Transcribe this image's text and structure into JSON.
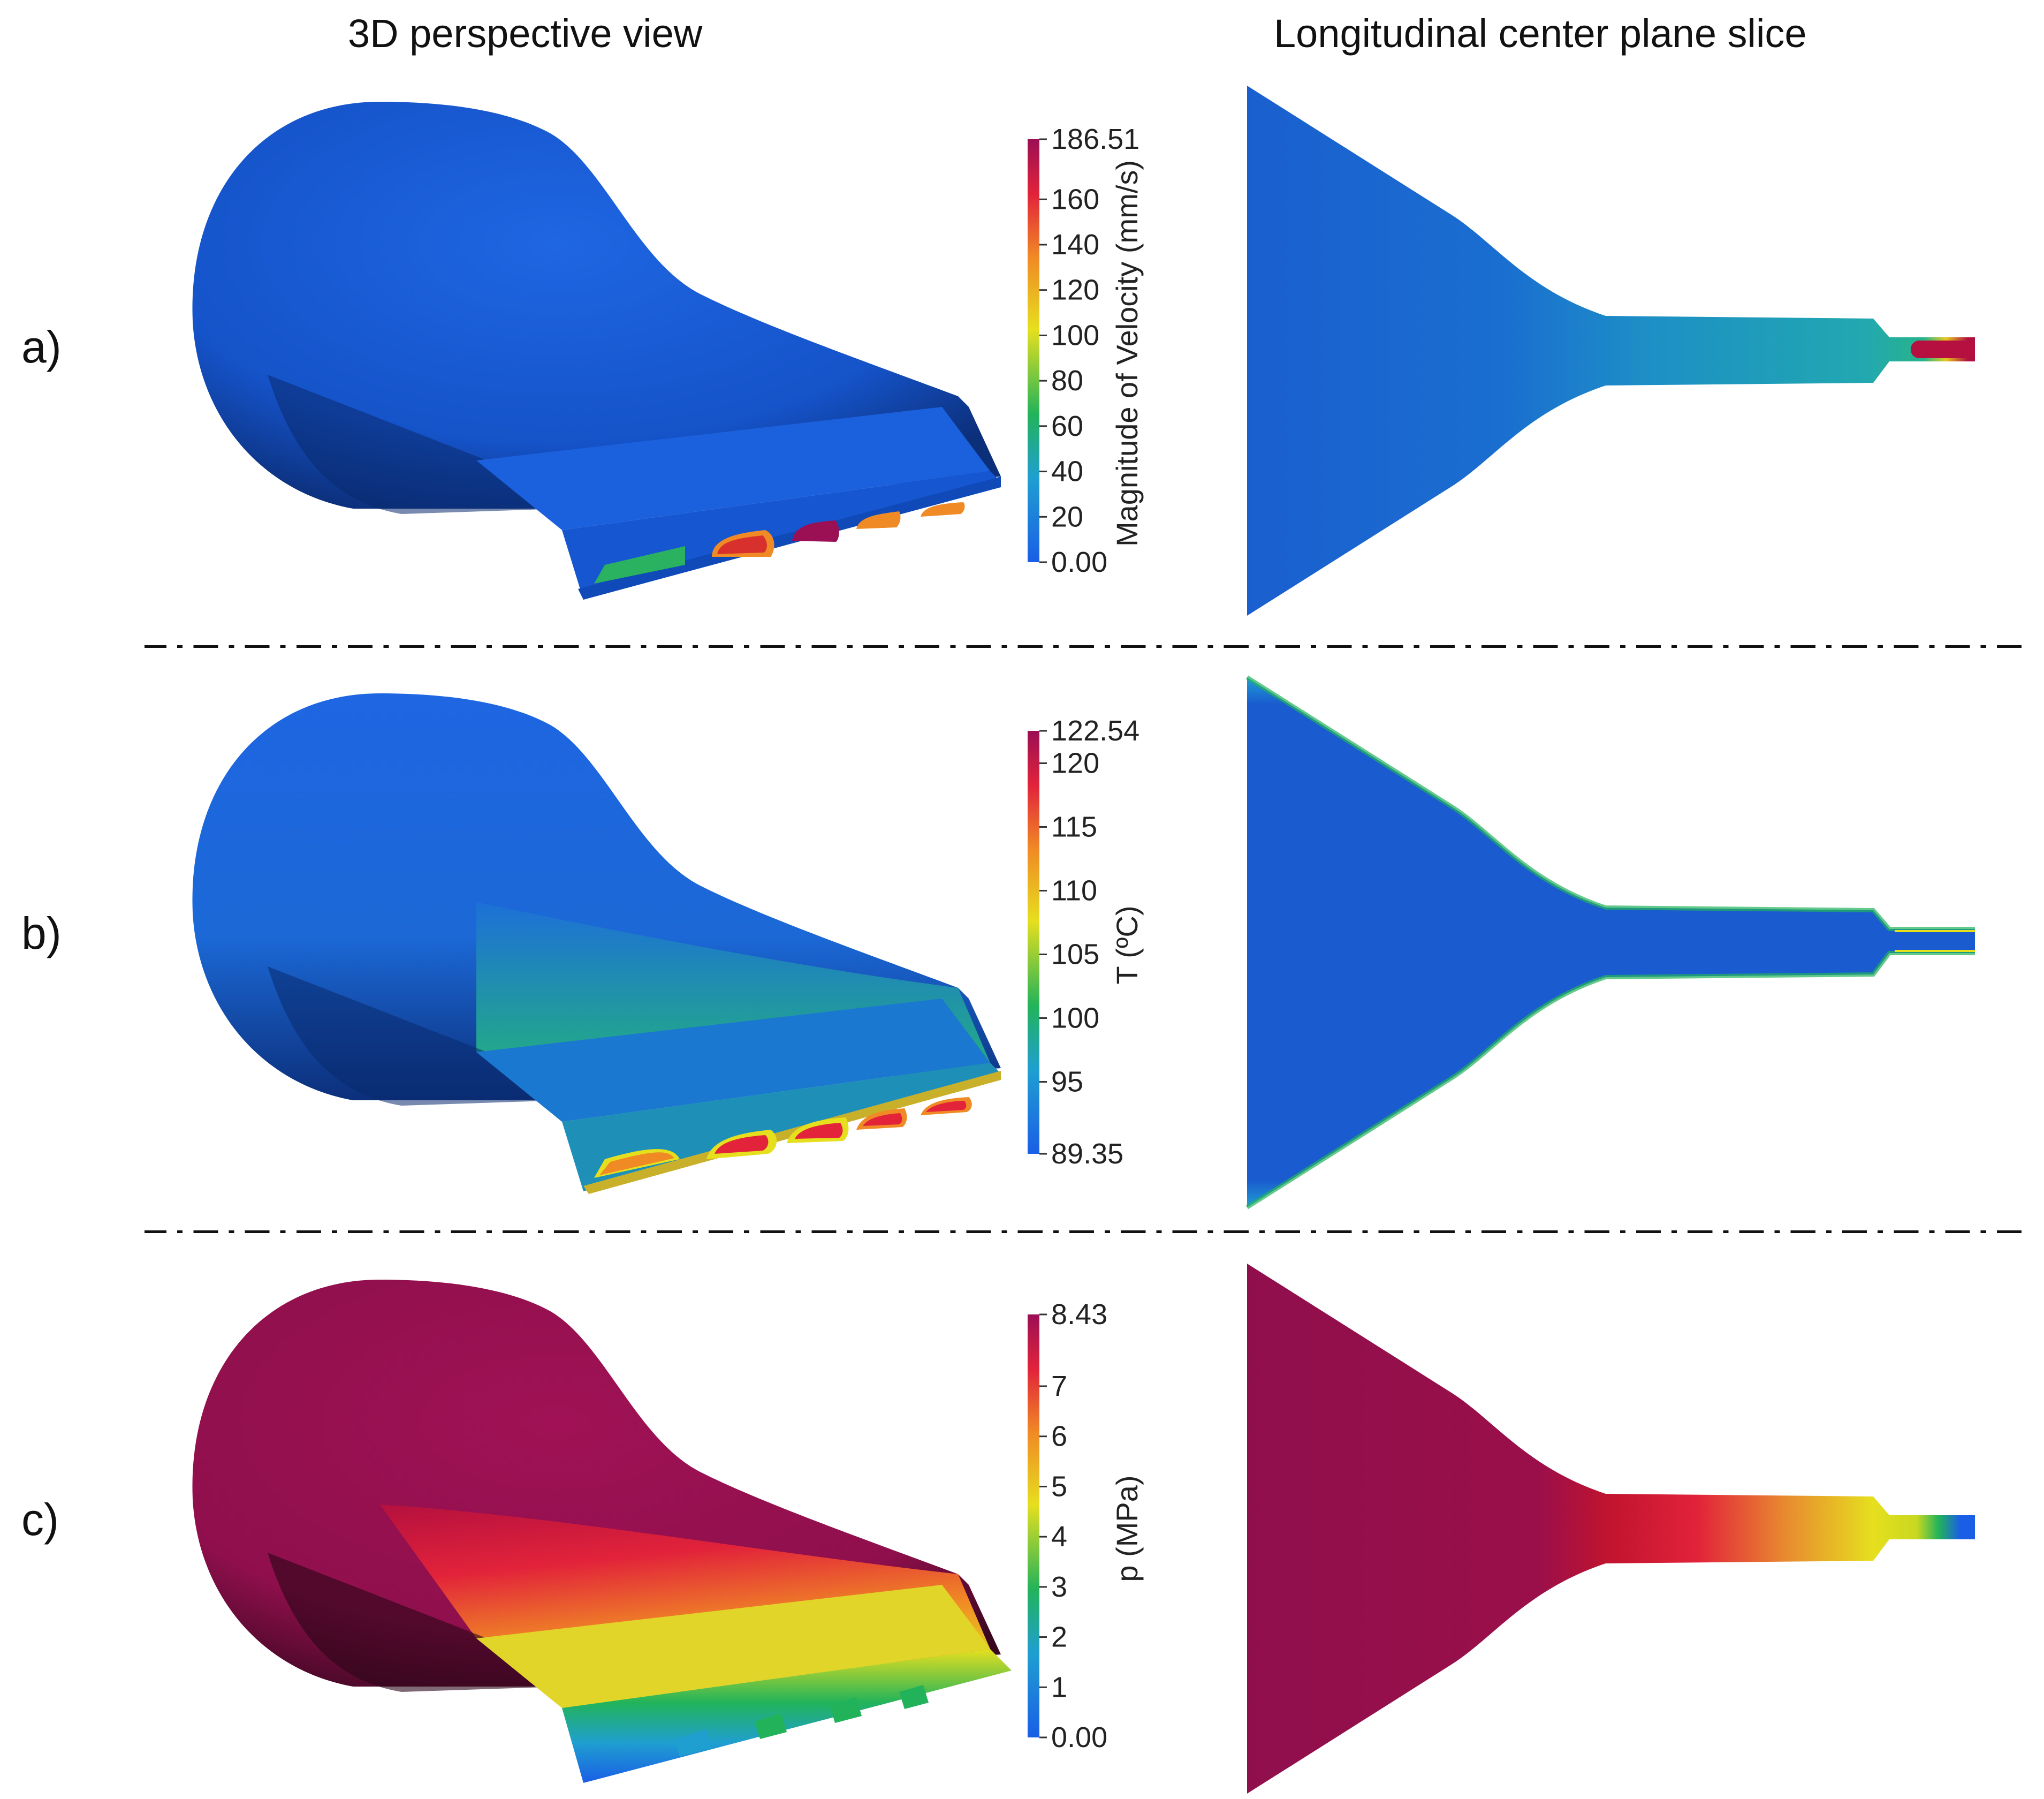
{
  "columns": {
    "left_title": "3D perspective view",
    "right_title": "Longitudinal center plane slice"
  },
  "rows": [
    {
      "label": "a)",
      "colorbar": {
        "title": "Magnitude of Velocity (mm/s)",
        "max_label": "186.51",
        "min_label": "0.00",
        "min": 0.0,
        "max": 186.51,
        "ticks": [
          {
            "value": 160,
            "label": "160"
          },
          {
            "value": 140,
            "label": "140"
          },
          {
            "value": 120,
            "label": "120"
          },
          {
            "value": 100,
            "label": "100"
          },
          {
            "value": 80,
            "label": "80"
          },
          {
            "value": 60,
            "label": "60"
          },
          {
            "value": 40,
            "label": "40"
          },
          {
            "value": 20,
            "label": "20"
          }
        ]
      }
    },
    {
      "label": "b)",
      "colorbar": {
        "title": "T (ºC)",
        "max_label": "122.54",
        "min_label": "89.35",
        "min": 89.35,
        "max": 122.54,
        "ticks": [
          {
            "value": 120,
            "label": "120"
          },
          {
            "value": 115,
            "label": "115"
          },
          {
            "value": 110,
            "label": "110"
          },
          {
            "value": 105,
            "label": "105"
          },
          {
            "value": 100,
            "label": "100"
          },
          {
            "value": 95,
            "label": "95"
          }
        ]
      }
    },
    {
      "label": "c)",
      "colorbar": {
        "title": "p (MPa)",
        "max_label": "8.43",
        "min_label": "0.00",
        "min": 0.0,
        "max": 8.43,
        "ticks": [
          {
            "value": 7,
            "label": "7"
          },
          {
            "value": 6,
            "label": "6"
          },
          {
            "value": 5,
            "label": "5"
          },
          {
            "value": 4,
            "label": "4"
          },
          {
            "value": 3,
            "label": "3"
          },
          {
            "value": 2,
            "label": "2"
          },
          {
            "value": 1,
            "label": "1"
          }
        ]
      }
    }
  ],
  "colors": {
    "colormap_stops": [
      "#1a5ee6",
      "#1f9fd0",
      "#22b35a",
      "#e6df1e",
      "#f08a25",
      "#e2233a",
      "#9b0f55"
    ]
  }
}
